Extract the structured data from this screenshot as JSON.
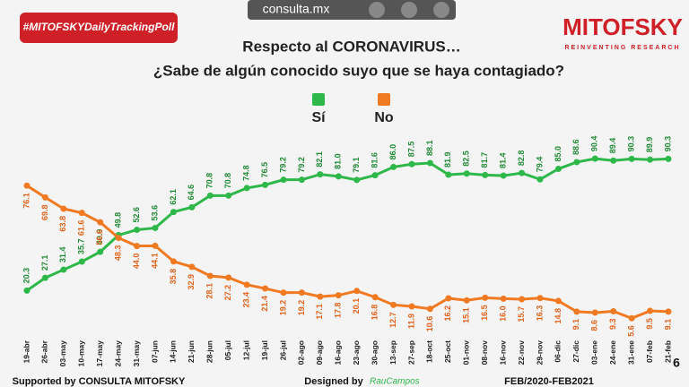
{
  "chart_data": {
    "type": "line",
    "hashtag": "#MITOFSKYDailyTrackingPoll",
    "site": "consulta.mx",
    "brand": "MITOFSKY",
    "brand_tagline": "REINVENTING RESEARCH",
    "title": "Respecto al CORONAVIRUS…",
    "subtitle": "¿Sabe de algún conocido suyo que se haya contagiado?",
    "categories": [
      "19-abr",
      "26-abr",
      "03-may",
      "10-may",
      "17-may",
      "24-may",
      "31-may",
      "07-jun",
      "14-jun",
      "21-jun",
      "28-jun",
      "05-jul",
      "12-jul",
      "19-jul",
      "26-jul",
      "02-ago",
      "09-ago",
      "16-ago",
      "23-ago",
      "30-ago",
      "13-sep",
      "27-sep",
      "18-oct",
      "25-oct",
      "01-nov",
      "08-nov",
      "16-nov",
      "22-nov",
      "29-nov",
      "06-dic",
      "27-dic",
      "03-ene",
      "24-ene",
      "31-ene",
      "07-feb",
      "21-feb"
    ],
    "ylim": [
      0,
      100
    ],
    "series": [
      {
        "name": "Sí",
        "color": "#2fb84a",
        "values": [
          20.3,
          27.1,
          31.4,
          35.7,
          40.9,
          49.8,
          52.6,
          53.6,
          62.1,
          64.6,
          70.8,
          70.8,
          74.8,
          76.5,
          79.2,
          79.2,
          82.1,
          81.0,
          79.1,
          81.6,
          86.0,
          87.5,
          88.1,
          81.9,
          82.5,
          81.7,
          81.4,
          82.8,
          79.4,
          85.0,
          88.6,
          90.4,
          89.4,
          90.3,
          89.9,
          90.3
        ],
        "value_labels": [
          "20.3",
          "27.1",
          "31.4",
          "35.7",
          "40.9",
          "49.8",
          "52.6",
          "53.6",
          "62.1",
          "64.6",
          "70.8",
          "70.8",
          "74.8",
          "76.5",
          "79.2",
          "79.2",
          "82.1",
          "81.0",
          "79.1",
          "81.6",
          "86.0",
          "87.5",
          "88.1",
          "81.9",
          "82.5",
          "81.7",
          "81.4",
          "82.8",
          "79.4",
          "85.0",
          "88.6",
          "90.4",
          "89.4",
          "90.3",
          "89.9",
          "90.3"
        ]
      },
      {
        "name": "No",
        "color": "#f07a22",
        "values": [
          76.1,
          69.8,
          63.8,
          61.6,
          56.6,
          48.3,
          44.0,
          44.1,
          35.8,
          32.9,
          28.1,
          27.2,
          23.4,
          21.4,
          19.2,
          19.2,
          17.1,
          17.8,
          20.1,
          16.8,
          12.7,
          11.9,
          10.6,
          16.2,
          15.1,
          16.5,
          16.0,
          15.7,
          16.3,
          14.8,
          9.1,
          8.6,
          9.3,
          5.6,
          9.5,
          9.1
        ],
        "value_labels": [
          "76.1",
          "69.8",
          "63.8",
          "61.6",
          "56.6",
          "48.3",
          "44.0",
          "44.1",
          "35.8",
          "32.9",
          "28.1",
          "27.2",
          "23.4",
          "21.4",
          "19.2",
          "19.2",
          "17.1",
          "17.8",
          "20.1",
          "16.8",
          "12.7",
          "11.9",
          "10.6",
          "16.2",
          "15.1",
          "16.5",
          "16.0",
          "15.7",
          "16.3",
          "14.8",
          "9.1",
          "8.6",
          "9.3",
          "5.6",
          "9.5",
          "9.1"
        ]
      }
    ],
    "footer_support": "Supported by  CONSULTA  MITOFSKY",
    "footer_design": "Designed by",
    "footer_designer": "RauCampos",
    "footer_period": "FEB/2020-FEB2021",
    "page_number": "6"
  }
}
